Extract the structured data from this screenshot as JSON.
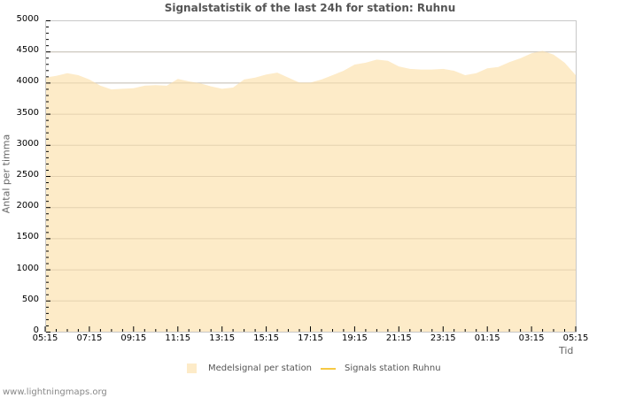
{
  "header": {
    "title": "Signalstatistik of the last 24h for station: Ruhnu"
  },
  "axes": {
    "ylabel": "Antal per timma",
    "xlabel": "Tid"
  },
  "legend": {
    "items": [
      {
        "label": "Medelsignal per station",
        "type": "area",
        "color": "#fdebc8"
      },
      {
        "label": "Signals station Ruhnu",
        "type": "line",
        "color": "#f6c944"
      }
    ]
  },
  "footer": {
    "text": "www.lightningmaps.org"
  },
  "chart_data": {
    "type": "area",
    "title": "Signalstatistik of the last 24h for station: Ruhnu",
    "xlabel": "Tid",
    "ylabel": "Antal per timma",
    "ylim": [
      0,
      5000
    ],
    "yticks": [
      0,
      500,
      1000,
      1500,
      2000,
      2500,
      3000,
      3500,
      4000,
      4500,
      5000
    ],
    "xticks": [
      "05:15",
      "07:15",
      "09:15",
      "11:15",
      "13:15",
      "15:15",
      "17:15",
      "19:15",
      "21:15",
      "23:15",
      "01:15",
      "03:15",
      "05:15"
    ],
    "grid": true,
    "legend_position": "bottom",
    "series": [
      {
        "name": "Medelsignal per station",
        "type": "area",
        "color": "#fdebc8",
        "x": [
          "05:15",
          "05:45",
          "06:15",
          "06:45",
          "07:15",
          "07:45",
          "08:15",
          "08:45",
          "09:15",
          "09:45",
          "10:15",
          "10:45",
          "11:15",
          "11:45",
          "12:15",
          "12:45",
          "13:15",
          "13:45",
          "14:15",
          "14:45",
          "15:15",
          "15:45",
          "16:15",
          "16:45",
          "17:15",
          "17:45",
          "18:15",
          "18:45",
          "19:15",
          "19:45",
          "20:15",
          "20:45",
          "21:15",
          "21:45",
          "22:15",
          "22:45",
          "23:15",
          "23:45",
          "00:15",
          "00:45",
          "01:15",
          "01:45",
          "02:15",
          "02:45",
          "03:15",
          "03:45",
          "04:15",
          "04:45",
          "05:15"
        ],
        "values": [
          4080,
          4110,
          4150,
          4120,
          4050,
          3950,
          3890,
          3900,
          3910,
          3950,
          3960,
          3950,
          4060,
          4020,
          3990,
          3940,
          3900,
          3920,
          4050,
          4080,
          4130,
          4160,
          4080,
          4000,
          4000,
          4050,
          4120,
          4190,
          4290,
          4320,
          4370,
          4350,
          4260,
          4220,
          4210,
          4210,
          4220,
          4190,
          4120,
          4150,
          4230,
          4250,
          4330,
          4390,
          4470,
          4510,
          4450,
          4320,
          4120
        ]
      },
      {
        "name": "Signals station Ruhnu",
        "type": "line",
        "color": "#f6c944",
        "values": []
      }
    ]
  }
}
